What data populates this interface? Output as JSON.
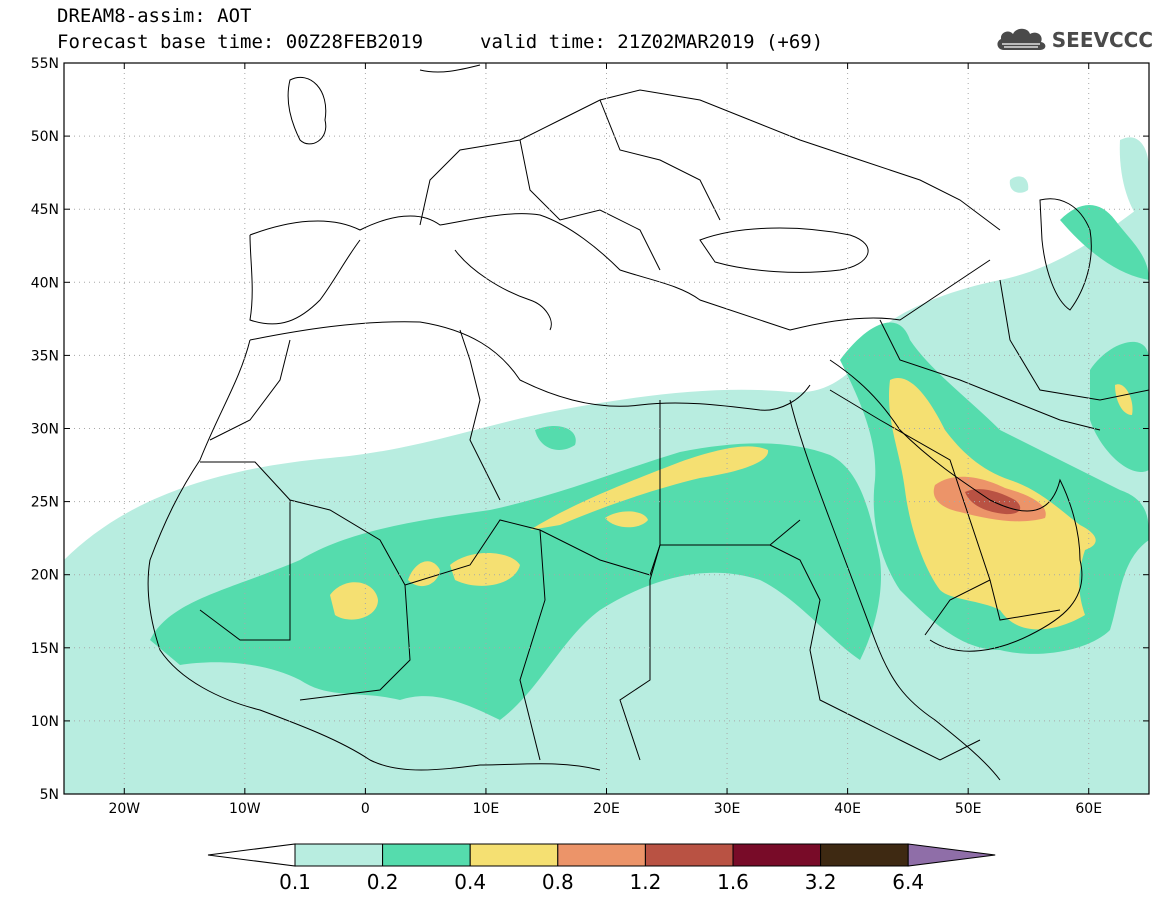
{
  "header": {
    "title": "DREAM8-assim: AOT",
    "base_time": "Forecast base time: 00Z28FEB2019",
    "valid_time": "valid time: 21Z02MAR2019 (+69)"
  },
  "logo": {
    "text": "SEEVCCC",
    "icon": "cloud-icon",
    "color": "#4a4a4a"
  },
  "map": {
    "lon_range": [
      -25,
      65
    ],
    "lat_range": [
      5,
      55
    ],
    "lon_ticks": [
      {
        "value": -20,
        "label": "20W"
      },
      {
        "value": -10,
        "label": "10W"
      },
      {
        "value": 0,
        "label": "0"
      },
      {
        "value": 10,
        "label": "10E"
      },
      {
        "value": 20,
        "label": "20E"
      },
      {
        "value": 30,
        "label": "30E"
      },
      {
        "value": 40,
        "label": "40E"
      },
      {
        "value": 50,
        "label": "50E"
      },
      {
        "value": 60,
        "label": "60E"
      }
    ],
    "lat_ticks": [
      {
        "value": 55,
        "label": "55N"
      },
      {
        "value": 50,
        "label": "50N"
      },
      {
        "value": 45,
        "label": "45N"
      },
      {
        "value": 40,
        "label": "40N"
      },
      {
        "value": 35,
        "label": "35N"
      },
      {
        "value": 30,
        "label": "30N"
      },
      {
        "value": 25,
        "label": "25N"
      },
      {
        "value": 20,
        "label": "20N"
      },
      {
        "value": 15,
        "label": "15N"
      },
      {
        "value": 10,
        "label": "10N"
      },
      {
        "value": 5,
        "label": "5N"
      }
    ],
    "grid": true
  },
  "colorbar": {
    "colors": [
      "#ffffff",
      "#b8ede0",
      "#55dcad",
      "#f5e072",
      "#ec9469",
      "#b95243",
      "#780b28",
      "#3e2912",
      "#8f6ea8"
    ],
    "labels": [
      "0.1",
      "0.2",
      "0.4",
      "0.8",
      "1.2",
      "1.6",
      "3.2",
      "6.4"
    ]
  }
}
